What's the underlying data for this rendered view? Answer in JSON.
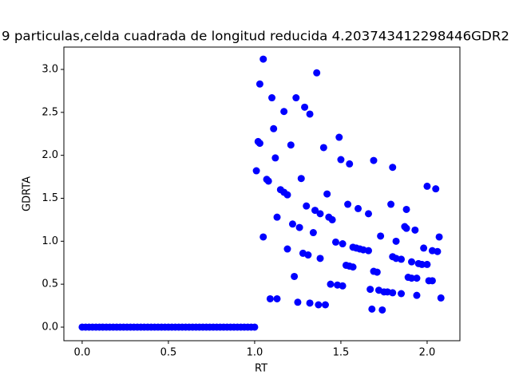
{
  "chart_data": {
    "type": "scatter",
    "title": "9 particulas,celda cuadrada de longitud reducida 4.203743412298446GDR2",
    "xlabel": "RT",
    "ylabel": "GDRTA",
    "color": "#0000ff",
    "xlim": [
      -0.106,
      2.19
    ],
    "ylim": [
      -0.158,
      3.26
    ],
    "xticks": [
      {
        "value": 0,
        "label": "0.0"
      },
      {
        "value": 0.5,
        "label": "0.5"
      },
      {
        "value": 1,
        "label": "1.0"
      },
      {
        "value": 1.5,
        "label": "1.5"
      },
      {
        "value": 2,
        "label": "2.0"
      }
    ],
    "yticks": [
      {
        "value": 0,
        "label": "0.0"
      },
      {
        "value": 0.5,
        "label": "0.5"
      },
      {
        "value": 1,
        "label": "1.0"
      },
      {
        "value": 1.5,
        "label": "1.5"
      },
      {
        "value": 2,
        "label": "2.0"
      },
      {
        "value": 2.5,
        "label": "2.5"
      },
      {
        "value": 3,
        "label": "3.0"
      }
    ],
    "x": [
      0,
      0.02,
      0.04,
      0.06,
      0.08,
      0.1,
      0.12,
      0.14,
      0.16,
      0.18,
      0.2,
      0.22,
      0.24,
      0.26,
      0.28,
      0.3,
      0.32,
      0.34,
      0.36,
      0.38,
      0.4,
      0.42,
      0.44,
      0.46,
      0.48,
      0.5,
      0.52,
      0.54,
      0.56,
      0.58,
      0.6,
      0.62,
      0.64,
      0.66,
      0.68,
      0.7,
      0.72,
      0.74,
      0.76,
      0.78,
      0.8,
      0.82,
      0.84,
      0.86,
      0.88,
      0.9,
      0.92,
      0.94,
      0.96,
      0.98,
      1.0,
      1.05,
      1.03,
      1.1,
      1.24,
      1.29,
      1.32,
      1.36,
      1.17,
      1.11,
      1.21,
      1.02,
      1.03,
      1.4,
      1.49,
      1.5,
      1.55,
      1.12,
      1.01,
      1.07,
      1.08,
      1.27,
      1.15,
      1.17,
      1.19,
      1.42,
      1.3,
      1.35,
      1.38,
      1.43,
      1.45,
      1.54,
      1.6,
      1.66,
      1.69,
      1.8,
      1.13,
      1.22,
      1.26,
      1.34,
      1.05,
      1.47,
      1.51,
      1.73,
      1.79,
      1.82,
      1.88,
      1.87,
      1.88,
      1.93,
      2.0,
      2.05,
      2.07,
      1.19,
      1.28,
      1.31,
      1.38,
      1.57,
      1.59,
      1.61,
      1.63,
      1.66,
      1.53,
      1.55,
      1.57,
      1.69,
      1.71,
      1.8,
      1.82,
      1.85,
      1.91,
      1.95,
      1.97,
      2.0,
      1.98,
      2.03,
      2.06,
      1.23,
      1.89,
      1.91,
      1.94,
      2.01,
      2.03,
      1.44,
      1.48,
      1.51,
      1.67,
      1.72,
      1.75,
      1.77,
      1.8,
      1.85,
      1.94,
      2.08,
      1.09,
      1.13,
      1.25,
      1.32,
      1.37,
      1.41,
      1.68,
      1.74
    ],
    "y": [
      0,
      0,
      0,
      0,
      0,
      0,
      0,
      0,
      0,
      0,
      0,
      0,
      0,
      0,
      0,
      0,
      0,
      0,
      0,
      0,
      0,
      0,
      0,
      0,
      0,
      0,
      0,
      0,
      0,
      0,
      0,
      0,
      0,
      0,
      0,
      0,
      0,
      0,
      0,
      0,
      0,
      0,
      0,
      0,
      0,
      0,
      0,
      0,
      0,
      0,
      0,
      3.12,
      2.83,
      2.67,
      2.67,
      2.56,
      2.48,
      2.96,
      2.51,
      2.31,
      2.12,
      2.16,
      2.14,
      2.09,
      2.21,
      1.95,
      1.9,
      1.97,
      1.82,
      1.72,
      1.7,
      1.73,
      1.6,
      1.57,
      1.54,
      1.55,
      1.41,
      1.36,
      1.32,
      1.28,
      1.25,
      1.43,
      1.38,
      1.32,
      1.94,
      1.86,
      1.28,
      1.2,
      1.16,
      1.1,
      1.05,
      0.99,
      0.97,
      1.06,
      1.43,
      1.0,
      1.37,
      1.17,
      1.15,
      1.13,
      1.64,
      1.61,
      1.05,
      0.91,
      0.86,
      0.84,
      0.8,
      0.93,
      0.92,
      0.91,
      0.9,
      0.89,
      0.72,
      0.71,
      0.7,
      0.65,
      0.64,
      0.82,
      0.8,
      0.79,
      0.76,
      0.74,
      0.73,
      0.73,
      0.92,
      0.89,
      0.88,
      0.59,
      0.58,
      0.57,
      0.57,
      0.54,
      0.54,
      0.5,
      0.49,
      0.48,
      0.44,
      0.43,
      0.41,
      0.41,
      0.4,
      0.39,
      0.37,
      0.34,
      0.33,
      0.33,
      0.29,
      0.28,
      0.26,
      0.26,
      0.21,
      0.2
    ]
  }
}
